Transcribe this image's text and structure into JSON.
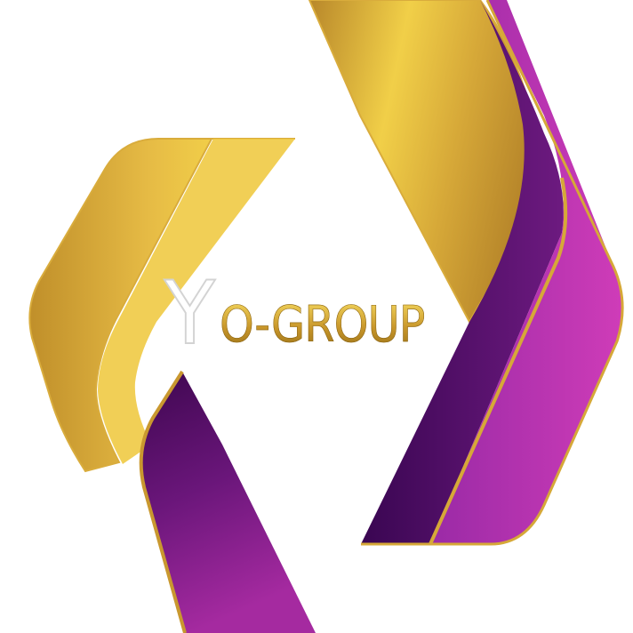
{
  "logo": {
    "wordmark_initial": "Y",
    "wordmark_rest": "O-GROUP"
  },
  "colors": {
    "gold_light": "#f4d34a",
    "gold_mid": "#d6a838",
    "gold_dark": "#b7862a",
    "purple_dark": "#4a0a5c",
    "purple_mid": "#7a1a86",
    "magenta": "#c83ab4",
    "background": "#ffffff"
  }
}
